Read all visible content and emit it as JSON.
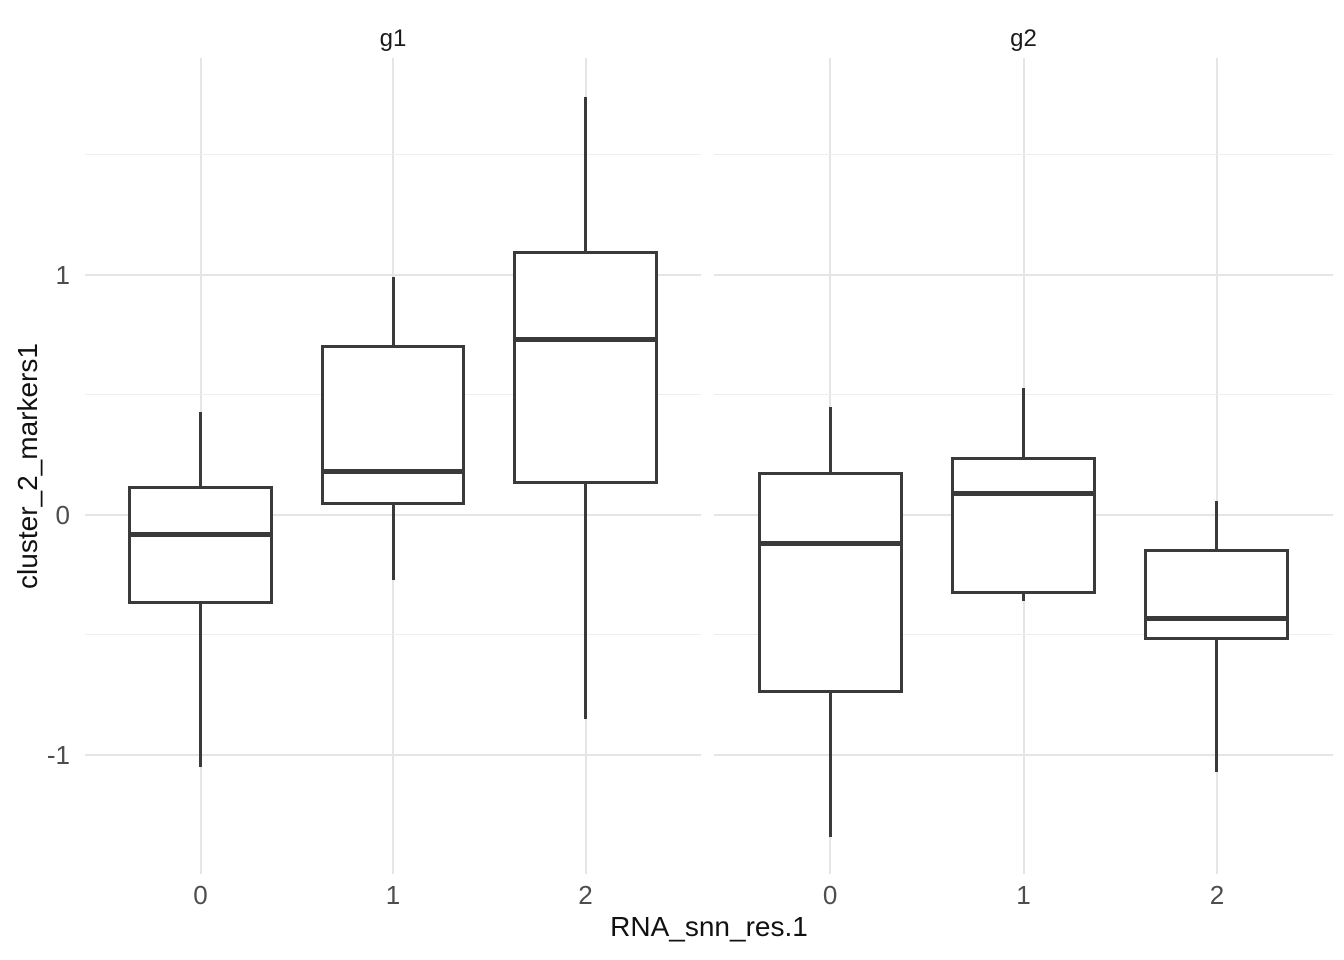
{
  "chart_data": {
    "type": "boxplot",
    "title": "",
    "xlabel": "RNA_snn_res.1",
    "ylabel": "cluster_2_markers1",
    "y_ticks": [
      -1,
      0,
      1
    ],
    "y_minor_ticks": [
      -0.5,
      0.5,
      1.5
    ],
    "ylim": [
      -1.496,
      1.904
    ],
    "x_tick_labels": [
      "0",
      "1",
      "2"
    ],
    "box_width_fraction": 0.75,
    "grid": true,
    "legend": "none",
    "facets": [
      {
        "label": "g1",
        "categories": [
          "0",
          "1",
          "2"
        ],
        "boxes": [
          {
            "category": "0",
            "whisker_low": -1.05,
            "q1": -0.37,
            "median": -0.08,
            "q3": 0.12,
            "whisker_high": 0.43
          },
          {
            "category": "1",
            "whisker_low": -0.27,
            "q1": 0.04,
            "median": 0.18,
            "q3": 0.71,
            "whisker_high": 0.99
          },
          {
            "category": "2",
            "whisker_low": -0.85,
            "q1": 0.13,
            "median": 0.73,
            "q3": 1.1,
            "whisker_high": 1.74
          }
        ]
      },
      {
        "label": "g2",
        "categories": [
          "0",
          "1",
          "2"
        ],
        "boxes": [
          {
            "category": "0",
            "whisker_low": -1.34,
            "q1": -0.74,
            "median": -0.12,
            "q3": 0.18,
            "whisker_high": 0.45
          },
          {
            "category": "1",
            "whisker_low": -0.36,
            "q1": -0.33,
            "median": 0.09,
            "q3": 0.24,
            "whisker_high": 0.53
          },
          {
            "category": "2",
            "whisker_low": -1.07,
            "q1": -0.52,
            "median": -0.43,
            "q3": -0.14,
            "whisker_high": 0.06
          }
        ]
      }
    ],
    "colors": {
      "background": "#ffffff",
      "box_stroke": "#3a3a3a",
      "median": "#3a3a3a",
      "grid_major": "#e5e5e5",
      "grid_minor": "#eeeeee",
      "tick_text": "#4d4d4d",
      "title_text": "#111111",
      "strip_text": "#1a1a1a"
    }
  }
}
